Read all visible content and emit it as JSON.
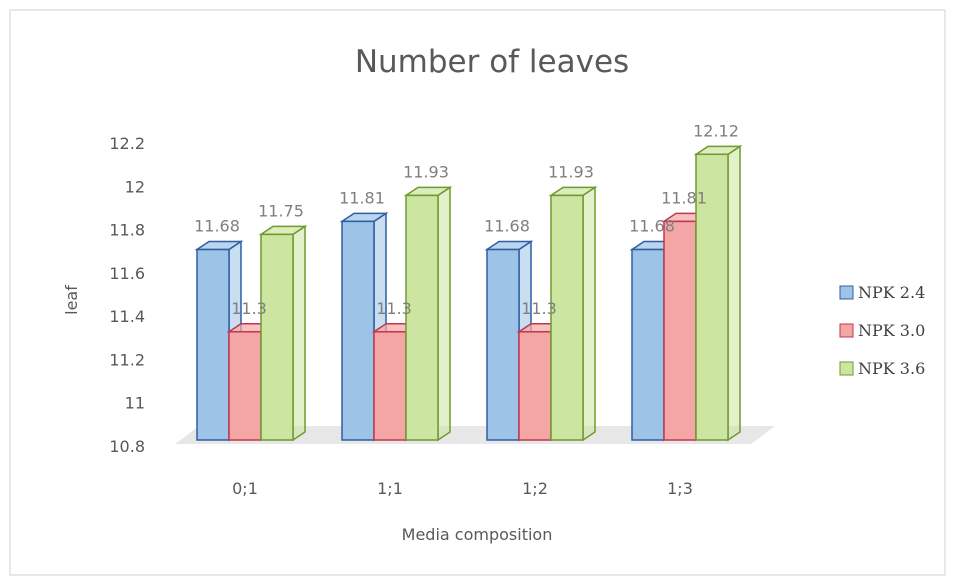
{
  "chart_data": {
    "type": "bar",
    "title": "Number of leaves",
    "xlabel": "Media composition",
    "ylabel": "leaf",
    "categories": [
      "0;1",
      "1;1",
      "1;2",
      "1;3"
    ],
    "series": [
      {
        "name": "NPK 2.4",
        "values": [
          11.68,
          11.81,
          11.68,
          11.68
        ],
        "data_labels": [
          "11.68",
          "11.81",
          "11.68",
          "11.68"
        ]
      },
      {
        "name": "NPK 3.0",
        "values": [
          11.3,
          11.3,
          11.3,
          11.81
        ],
        "data_labels": [
          "11.3",
          "11.3",
          "11.3",
          "11.81"
        ]
      },
      {
        "name": "NPK 3.6",
        "values": [
          11.75,
          11.93,
          11.93,
          12.12
        ],
        "data_labels": [
          "11.75",
          "11.93",
          "11.93",
          "12.12"
        ]
      }
    ],
    "ylim": [
      10.8,
      12.2
    ],
    "y_ticks": [
      "10.8",
      "11",
      "11.2",
      "11.4",
      "11.6",
      "11.8",
      "12",
      "12.2"
    ],
    "grid": false,
    "legend": "right",
    "style": "3d-clustered-column"
  },
  "colors": {
    "series_fill": [
      "#9dc3e6",
      "#f4a6a6",
      "#cce5a0"
    ],
    "series_stroke": [
      "#2e5fa3",
      "#c0384b",
      "#6e9a2f"
    ],
    "floor": "#e7e7e7",
    "border": "#d9d9d9"
  }
}
